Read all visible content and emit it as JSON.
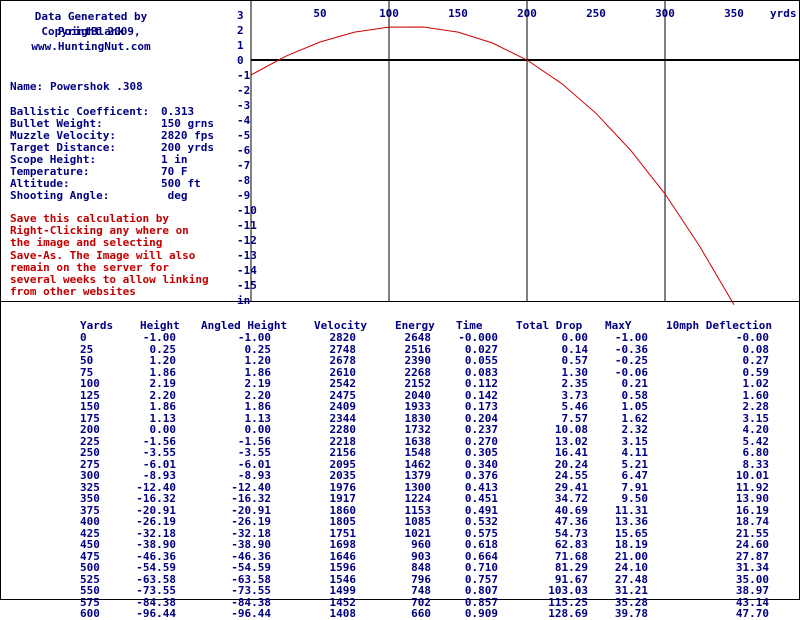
{
  "credits": [
    "Data Generated by PointBlank",
    "Copyright 2009,",
    "www.HuntingNut.com"
  ],
  "name": {
    "label": "Name:",
    "value": "Powershok .308"
  },
  "specs": [
    {
      "label": "Ballistic Coefficent:",
      "value": "0.313"
    },
    {
      "label": "Bullet Weight:",
      "value": "150 grns"
    },
    {
      "label": "Muzzle Velocity:",
      "value": "2820 fps"
    },
    {
      "label": "Target Distance:",
      "value": "200 yrds"
    },
    {
      "label": "Scope Height:",
      "value": "1 in"
    },
    {
      "label": "Temperature:",
      "value": "70 F"
    },
    {
      "label": "Altitude:",
      "value": "500 ft"
    },
    {
      "label": "Shooting Angle:",
      "value": " deg"
    }
  ],
  "save_note": "Save this calculation by\nRight-Clicking any where on\nthe image and selecting\nSave-As. The Image will also\nremain on the server for\nseveral weeks to allow linking\nfrom other websites",
  "colors": {
    "curve": "#cc0000",
    "text": "#000080",
    "note": "#c00000",
    "axis": "#000000"
  },
  "chart_data": {
    "type": "line",
    "x_unit_label": "yrds",
    "x_ticks": [
      "50",
      "100",
      "150",
      "200",
      "250",
      "300",
      "350"
    ],
    "y_ticks": [
      "3",
      "2",
      "1",
      "0",
      "-1",
      "-2",
      "-3",
      "-4",
      "-5",
      "-6",
      "-7",
      "-8",
      "-9",
      "-10",
      "-11",
      "-12",
      "-13",
      "-14",
      "-15",
      "in"
    ],
    "xlim": [
      0,
      380
    ],
    "ylim": [
      -16.2,
      3.1
    ],
    "grid": "vertical lines at 100, 200, 300; horizontal line at 0",
    "series": [
      {
        "x": [
          0,
          25,
          50,
          75,
          100,
          125,
          150,
          175,
          200,
          225,
          250,
          275,
          300,
          325,
          350
        ],
        "y": [
          -1.0,
          0.25,
          1.2,
          1.86,
          2.19,
          2.2,
          1.86,
          1.13,
          0.0,
          -1.56,
          -3.55,
          -6.01,
          -8.93,
          -12.4,
          -16.32
        ]
      }
    ]
  },
  "table": {
    "columns": [
      {
        "key": "yards",
        "header": "Yards"
      },
      {
        "key": "height",
        "header": "Height"
      },
      {
        "key": "angled",
        "header": "Angled Height"
      },
      {
        "key": "velocity",
        "header": "Velocity"
      },
      {
        "key": "energy",
        "header": "Energy"
      },
      {
        "key": "time",
        "header": "Time"
      },
      {
        "key": "drop",
        "header": "Total Drop"
      },
      {
        "key": "maxy",
        "header": "MaxY"
      },
      {
        "key": "deflection",
        "header": "10mph Deflection"
      }
    ],
    "rows": [
      {
        "yards": "0",
        "height": "-1.00",
        "angled": "-1.00",
        "velocity": "2820",
        "energy": "2648",
        "time": "-0.000",
        "drop": "0.00",
        "maxy": "-1.00",
        "deflection": "-0.00"
      },
      {
        "yards": "25",
        "height": "0.25",
        "angled": "0.25",
        "velocity": "2748",
        "energy": "2516",
        "time": "0.027",
        "drop": "0.14",
        "maxy": "-0.36",
        "deflection": "0.08"
      },
      {
        "yards": "50",
        "height": "1.20",
        "angled": "1.20",
        "velocity": "2678",
        "energy": "2390",
        "time": "0.055",
        "drop": "0.57",
        "maxy": "-0.25",
        "deflection": "0.27"
      },
      {
        "yards": "75",
        "height": "1.86",
        "angled": "1.86",
        "velocity": "2610",
        "energy": "2268",
        "time": "0.083",
        "drop": "1.30",
        "maxy": "-0.06",
        "deflection": "0.59"
      },
      {
        "yards": "100",
        "height": "2.19",
        "angled": "2.19",
        "velocity": "2542",
        "energy": "2152",
        "time": "0.112",
        "drop": "2.35",
        "maxy": "0.21",
        "deflection": "1.02"
      },
      {
        "yards": "125",
        "height": "2.20",
        "angled": "2.20",
        "velocity": "2475",
        "energy": "2040",
        "time": "0.142",
        "drop": "3.73",
        "maxy": "0.58",
        "deflection": "1.60"
      },
      {
        "yards": "150",
        "height": "1.86",
        "angled": "1.86",
        "velocity": "2409",
        "energy": "1933",
        "time": "0.173",
        "drop": "5.46",
        "maxy": "1.05",
        "deflection": "2.28"
      },
      {
        "yards": "175",
        "height": "1.13",
        "angled": "1.13",
        "velocity": "2344",
        "energy": "1830",
        "time": "0.204",
        "drop": "7.57",
        "maxy": "1.62",
        "deflection": "3.15"
      },
      {
        "yards": "200",
        "height": "0.00",
        "angled": "0.00",
        "velocity": "2280",
        "energy": "1732",
        "time": "0.237",
        "drop": "10.08",
        "maxy": "2.32",
        "deflection": "4.20"
      },
      {
        "yards": "225",
        "height": "-1.56",
        "angled": "-1.56",
        "velocity": "2218",
        "energy": "1638",
        "time": "0.270",
        "drop": "13.02",
        "maxy": "3.15",
        "deflection": "5.42"
      },
      {
        "yards": "250",
        "height": "-3.55",
        "angled": "-3.55",
        "velocity": "2156",
        "energy": "1548",
        "time": "0.305",
        "drop": "16.41",
        "maxy": "4.11",
        "deflection": "6.80"
      },
      {
        "yards": "275",
        "height": "-6.01",
        "angled": "-6.01",
        "velocity": "2095",
        "energy": "1462",
        "time": "0.340",
        "drop": "20.24",
        "maxy": "5.21",
        "deflection": "8.33"
      },
      {
        "yards": "300",
        "height": "-8.93",
        "angled": "-8.93",
        "velocity": "2035",
        "energy": "1379",
        "time": "0.376",
        "drop": "24.55",
        "maxy": "6.47",
        "deflection": "10.01"
      },
      {
        "yards": "325",
        "height": "-12.40",
        "angled": "-12.40",
        "velocity": "1976",
        "energy": "1300",
        "time": "0.413",
        "drop": "29.41",
        "maxy": "7.91",
        "deflection": "11.92"
      },
      {
        "yards": "350",
        "height": "-16.32",
        "angled": "-16.32",
        "velocity": "1917",
        "energy": "1224",
        "time": "0.451",
        "drop": "34.72",
        "maxy": "9.50",
        "deflection": "13.90"
      },
      {
        "yards": "375",
        "height": "-20.91",
        "angled": "-20.91",
        "velocity": "1860",
        "energy": "1153",
        "time": "0.491",
        "drop": "40.69",
        "maxy": "11.31",
        "deflection": "16.19"
      },
      {
        "yards": "400",
        "height": "-26.19",
        "angled": "-26.19",
        "velocity": "1805",
        "energy": "1085",
        "time": "0.532",
        "drop": "47.36",
        "maxy": "13.36",
        "deflection": "18.74"
      },
      {
        "yards": "425",
        "height": "-32.18",
        "angled": "-32.18",
        "velocity": "1751",
        "energy": "1021",
        "time": "0.575",
        "drop": "54.73",
        "maxy": "15.65",
        "deflection": "21.55"
      },
      {
        "yards": "450",
        "height": "-38.90",
        "angled": "-38.90",
        "velocity": "1698",
        "energy": "960",
        "time": "0.618",
        "drop": "62.83",
        "maxy": "18.19",
        "deflection": "24.60"
      },
      {
        "yards": "475",
        "height": "-46.36",
        "angled": "-46.36",
        "velocity": "1646",
        "energy": "903",
        "time": "0.664",
        "drop": "71.68",
        "maxy": "21.00",
        "deflection": "27.87"
      },
      {
        "yards": "500",
        "height": "-54.59",
        "angled": "-54.59",
        "velocity": "1596",
        "energy": "848",
        "time": "0.710",
        "drop": "81.29",
        "maxy": "24.10",
        "deflection": "31.34"
      },
      {
        "yards": "525",
        "height": "-63.58",
        "angled": "-63.58",
        "velocity": "1546",
        "energy": "796",
        "time": "0.757",
        "drop": "91.67",
        "maxy": "27.48",
        "deflection": "35.00"
      },
      {
        "yards": "550",
        "height": "-73.55",
        "angled": "-73.55",
        "velocity": "1499",
        "energy": "748",
        "time": "0.807",
        "drop": "103.03",
        "maxy": "31.21",
        "deflection": "38.97"
      },
      {
        "yards": "575",
        "height": "-84.38",
        "angled": "-84.38",
        "velocity": "1452",
        "energy": "702",
        "time": "0.857",
        "drop": "115.25",
        "maxy": "35.28",
        "deflection": "43.14"
      },
      {
        "yards": "600",
        "height": "-96.44",
        "angled": "-96.44",
        "velocity": "1408",
        "energy": "660",
        "time": "0.909",
        "drop": "128.69",
        "maxy": "39.78",
        "deflection": "47.70"
      }
    ]
  }
}
